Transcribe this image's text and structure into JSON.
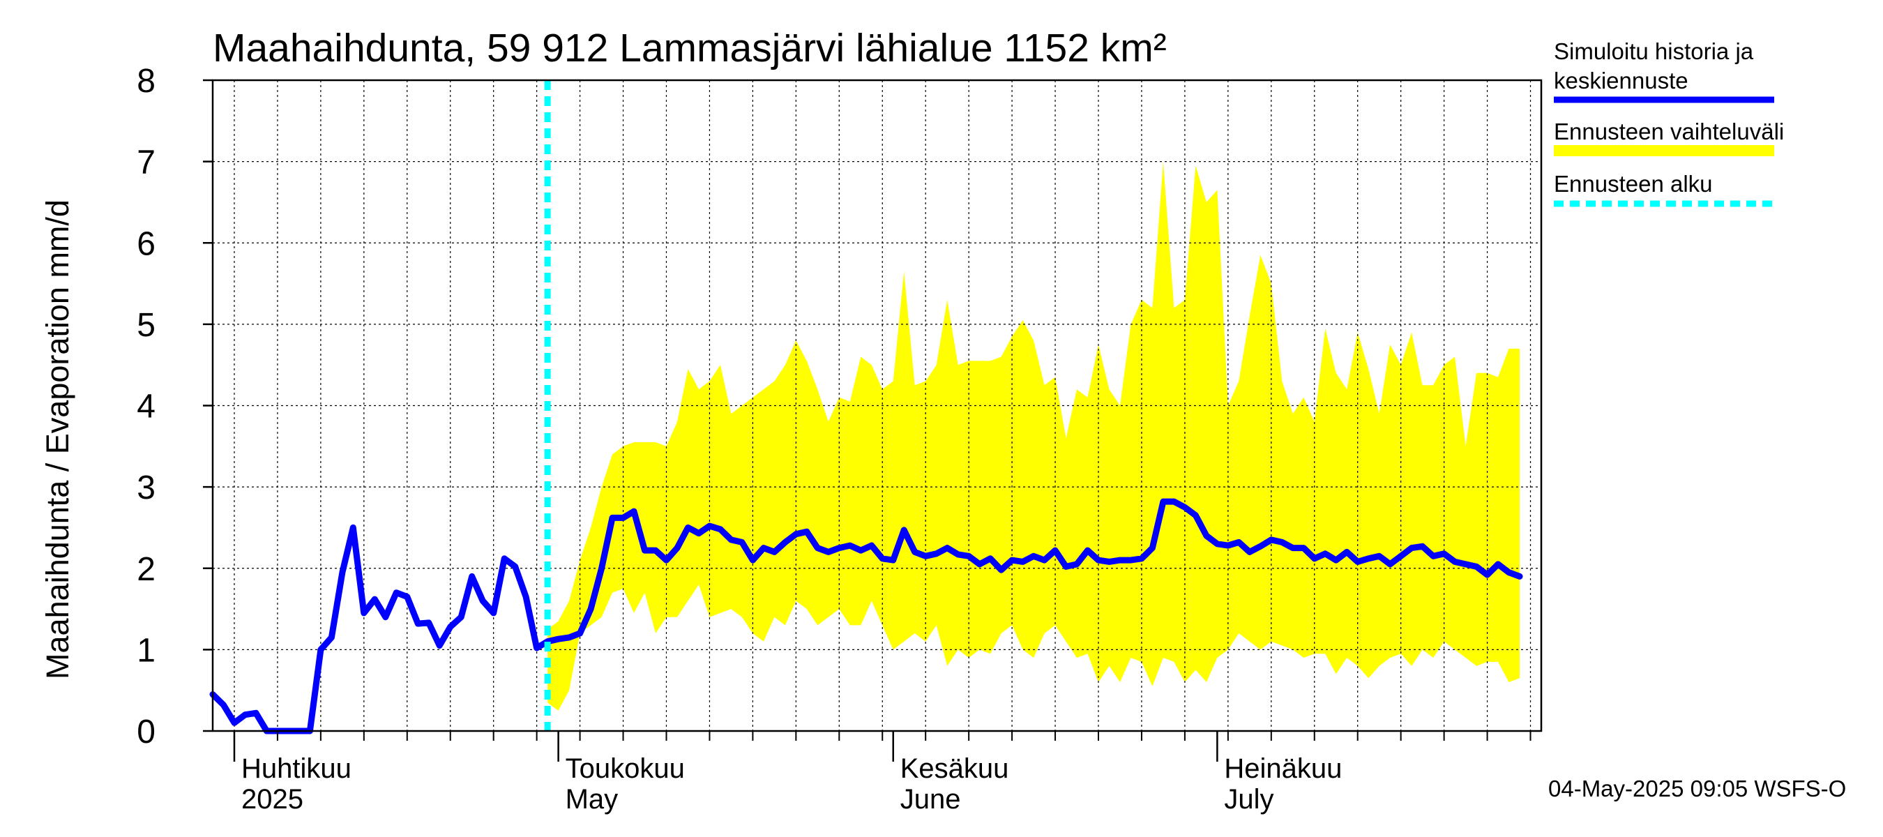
{
  "chart_data": {
    "type": "area",
    "title": "Maahaihdunta, 59 912 Lammasjärvi lähialue 1152 km²",
    "ylabel": "Maahaihdunta / Evaporation   mm/d",
    "ylim": [
      0,
      8
    ],
    "yticks": [
      "0",
      "1",
      "2",
      "3",
      "4",
      "5",
      "6",
      "7",
      "8"
    ],
    "xlim": [
      "2025-03-30",
      "2025-07-31"
    ],
    "grid": true,
    "legend_position": "right",
    "forecast_start": "2025-04-30",
    "month_labels": [
      {
        "date": "2025-04-01",
        "fi": "Huhtikuu",
        "en": "2025"
      },
      {
        "date": "2025-05-01",
        "fi": "Toukokuu",
        "en": "May"
      },
      {
        "date": "2025-06-01",
        "fi": "Kesäkuu",
        "en": "June"
      },
      {
        "date": "2025-07-01",
        "fi": "Heinäkuu",
        "en": "July"
      }
    ],
    "legend": {
      "history": [
        "Simuloitu historia ja",
        "keskiennuste"
      ],
      "range": "Ennusteen vaihteluväli",
      "start": "Ennusteen alku"
    },
    "colors": {
      "history": "#0000ff",
      "range": "#ffff00",
      "start": "#00ffff"
    },
    "series": [
      {
        "name": "Simuloitu historia ja keskiennuste",
        "points": [
          [
            "2025-03-30",
            0.45
          ],
          [
            "2025-03-31",
            0.32
          ],
          [
            "2025-04-01",
            0.1
          ],
          [
            "2025-04-02",
            0.2
          ],
          [
            "2025-04-03",
            0.22
          ],
          [
            "2025-04-04",
            0.0
          ],
          [
            "2025-04-05",
            0.0
          ],
          [
            "2025-04-06",
            0.0
          ],
          [
            "2025-04-07",
            0.0
          ],
          [
            "2025-04-08",
            0.0
          ],
          [
            "2025-04-09",
            1.0
          ],
          [
            "2025-04-10",
            1.15
          ],
          [
            "2025-04-11",
            1.95
          ],
          [
            "2025-04-12",
            2.5
          ],
          [
            "2025-04-13",
            1.45
          ],
          [
            "2025-04-14",
            1.62
          ],
          [
            "2025-04-15",
            1.4
          ],
          [
            "2025-04-16",
            1.7
          ],
          [
            "2025-04-17",
            1.65
          ],
          [
            "2025-04-18",
            1.32
          ],
          [
            "2025-04-19",
            1.33
          ],
          [
            "2025-04-20",
            1.05
          ],
          [
            "2025-04-21",
            1.28
          ],
          [
            "2025-04-22",
            1.4
          ],
          [
            "2025-04-23",
            1.9
          ],
          [
            "2025-04-24",
            1.6
          ],
          [
            "2025-04-25",
            1.45
          ],
          [
            "2025-04-26",
            2.12
          ],
          [
            "2025-04-27",
            2.02
          ],
          [
            "2025-04-28",
            1.65
          ],
          [
            "2025-04-29",
            1.02
          ],
          [
            "2025-04-30",
            1.1
          ],
          [
            "2025-05-01",
            1.13
          ],
          [
            "2025-05-02",
            1.15
          ],
          [
            "2025-05-03",
            1.2
          ],
          [
            "2025-05-04",
            1.5
          ],
          [
            "2025-05-05",
            2.0
          ],
          [
            "2025-05-06",
            2.62
          ],
          [
            "2025-05-07",
            2.62
          ],
          [
            "2025-05-08",
            2.7
          ],
          [
            "2025-05-09",
            2.22
          ],
          [
            "2025-05-10",
            2.22
          ],
          [
            "2025-05-11",
            2.1
          ],
          [
            "2025-05-12",
            2.25
          ],
          [
            "2025-05-13",
            2.5
          ],
          [
            "2025-05-14",
            2.43
          ],
          [
            "2025-05-15",
            2.52
          ],
          [
            "2025-05-16",
            2.48
          ],
          [
            "2025-05-17",
            2.35
          ],
          [
            "2025-05-18",
            2.32
          ],
          [
            "2025-05-19",
            2.1
          ],
          [
            "2025-05-20",
            2.25
          ],
          [
            "2025-05-21",
            2.2
          ],
          [
            "2025-05-22",
            2.32
          ],
          [
            "2025-05-23",
            2.42
          ],
          [
            "2025-05-24",
            2.45
          ],
          [
            "2025-05-25",
            2.25
          ],
          [
            "2025-05-26",
            2.2
          ],
          [
            "2025-05-27",
            2.25
          ],
          [
            "2025-05-28",
            2.28
          ],
          [
            "2025-05-29",
            2.22
          ],
          [
            "2025-05-30",
            2.28
          ],
          [
            "2025-05-31",
            2.12
          ],
          [
            "2025-06-01",
            2.1
          ],
          [
            "2025-06-02",
            2.47
          ],
          [
            "2025-06-03",
            2.2
          ],
          [
            "2025-06-04",
            2.15
          ],
          [
            "2025-06-05",
            2.18
          ],
          [
            "2025-06-06",
            2.25
          ],
          [
            "2025-06-07",
            2.17
          ],
          [
            "2025-06-08",
            2.15
          ],
          [
            "2025-06-09",
            2.05
          ],
          [
            "2025-06-10",
            2.12
          ],
          [
            "2025-06-11",
            1.98
          ],
          [
            "2025-06-12",
            2.1
          ],
          [
            "2025-06-13",
            2.08
          ],
          [
            "2025-06-14",
            2.15
          ],
          [
            "2025-06-15",
            2.1
          ],
          [
            "2025-06-16",
            2.22
          ],
          [
            "2025-06-17",
            2.02
          ],
          [
            "2025-06-18",
            2.05
          ],
          [
            "2025-06-19",
            2.22
          ],
          [
            "2025-06-20",
            2.1
          ],
          [
            "2025-06-21",
            2.08
          ],
          [
            "2025-06-22",
            2.1
          ],
          [
            "2025-06-23",
            2.1
          ],
          [
            "2025-06-24",
            2.12
          ],
          [
            "2025-06-25",
            2.25
          ],
          [
            "2025-06-26",
            2.82
          ],
          [
            "2025-06-27",
            2.82
          ],
          [
            "2025-06-28",
            2.75
          ],
          [
            "2025-06-29",
            2.65
          ],
          [
            "2025-06-30",
            2.4
          ],
          [
            "2025-07-01",
            2.3
          ],
          [
            "2025-07-02",
            2.28
          ],
          [
            "2025-07-03",
            2.32
          ],
          [
            "2025-07-04",
            2.2
          ],
          [
            "2025-07-05",
            2.27
          ],
          [
            "2025-07-06",
            2.35
          ],
          [
            "2025-07-07",
            2.32
          ],
          [
            "2025-07-08",
            2.25
          ],
          [
            "2025-07-09",
            2.25
          ],
          [
            "2025-07-10",
            2.12
          ],
          [
            "2025-07-11",
            2.18
          ],
          [
            "2025-07-12",
            2.1
          ],
          [
            "2025-07-13",
            2.2
          ],
          [
            "2025-07-14",
            2.08
          ],
          [
            "2025-07-15",
            2.12
          ],
          [
            "2025-07-16",
            2.15
          ],
          [
            "2025-07-17",
            2.05
          ],
          [
            "2025-07-18",
            2.15
          ],
          [
            "2025-07-19",
            2.25
          ],
          [
            "2025-07-20",
            2.27
          ],
          [
            "2025-07-21",
            2.15
          ],
          [
            "2025-07-22",
            2.18
          ],
          [
            "2025-07-23",
            2.08
          ],
          [
            "2025-07-24",
            2.05
          ],
          [
            "2025-07-25",
            2.02
          ],
          [
            "2025-07-26",
            1.92
          ],
          [
            "2025-07-27",
            2.05
          ],
          [
            "2025-07-28",
            1.95
          ],
          [
            "2025-07-29",
            1.9
          ]
        ]
      },
      {
        "name": "Ennusteen vaihteluväli",
        "band": [
          [
            "2025-04-30",
            1.25,
            0.35
          ],
          [
            "2025-05-01",
            1.35,
            0.25
          ],
          [
            "2025-05-02",
            1.6,
            0.5
          ],
          [
            "2025-05-03",
            2.1,
            1.2
          ],
          [
            "2025-05-04",
            2.5,
            1.3
          ],
          [
            "2025-05-05",
            3.0,
            1.4
          ],
          [
            "2025-05-06",
            3.4,
            1.7
          ],
          [
            "2025-05-07",
            3.5,
            1.75
          ],
          [
            "2025-05-08",
            3.55,
            1.45
          ],
          [
            "2025-05-09",
            3.55,
            1.7
          ],
          [
            "2025-05-10",
            3.55,
            1.2
          ],
          [
            "2025-05-11",
            3.5,
            1.4
          ],
          [
            "2025-05-12",
            3.8,
            1.4
          ],
          [
            "2025-05-13",
            4.45,
            1.6
          ],
          [
            "2025-05-14",
            4.2,
            1.8
          ],
          [
            "2025-05-15",
            4.3,
            1.4
          ],
          [
            "2025-05-16",
            4.5,
            1.45
          ],
          [
            "2025-05-17",
            3.9,
            1.5
          ],
          [
            "2025-05-18",
            4.0,
            1.4
          ],
          [
            "2025-05-19",
            4.1,
            1.2
          ],
          [
            "2025-05-20",
            4.2,
            1.1
          ],
          [
            "2025-05-21",
            4.3,
            1.4
          ],
          [
            "2025-05-22",
            4.5,
            1.3
          ],
          [
            "2025-05-23",
            4.8,
            1.6
          ],
          [
            "2025-05-24",
            4.55,
            1.5
          ],
          [
            "2025-05-25",
            4.2,
            1.3
          ],
          [
            "2025-05-26",
            3.8,
            1.4
          ],
          [
            "2025-05-27",
            4.1,
            1.5
          ],
          [
            "2025-05-28",
            4.05,
            1.3
          ],
          [
            "2025-05-29",
            4.6,
            1.3
          ],
          [
            "2025-05-30",
            4.5,
            1.6
          ],
          [
            "2025-05-31",
            4.2,
            1.3
          ],
          [
            "2025-06-01",
            4.3,
            1.0
          ],
          [
            "2025-06-02",
            5.65,
            1.1
          ],
          [
            "2025-06-03",
            4.25,
            1.2
          ],
          [
            "2025-06-04",
            4.3,
            1.1
          ],
          [
            "2025-06-05",
            4.5,
            1.3
          ],
          [
            "2025-06-06",
            5.3,
            0.8
          ],
          [
            "2025-06-07",
            4.5,
            1.0
          ],
          [
            "2025-06-08",
            4.55,
            0.9
          ],
          [
            "2025-06-09",
            4.55,
            1.0
          ],
          [
            "2025-06-10",
            4.55,
            0.95
          ],
          [
            "2025-06-11",
            4.6,
            1.2
          ],
          [
            "2025-06-12",
            4.85,
            1.3
          ],
          [
            "2025-06-13",
            5.05,
            1.0
          ],
          [
            "2025-06-14",
            4.8,
            0.9
          ],
          [
            "2025-06-15",
            4.25,
            1.2
          ],
          [
            "2025-06-16",
            4.35,
            1.3
          ],
          [
            "2025-06-17",
            3.6,
            1.1
          ],
          [
            "2025-06-18",
            4.2,
            0.9
          ],
          [
            "2025-06-19",
            4.1,
            0.95
          ],
          [
            "2025-06-20",
            4.75,
            0.6
          ],
          [
            "2025-06-21",
            4.2,
            0.8
          ],
          [
            "2025-06-22",
            4.0,
            0.6
          ],
          [
            "2025-06-23",
            5.0,
            0.9
          ],
          [
            "2025-06-24",
            5.3,
            0.85
          ],
          [
            "2025-06-25",
            5.2,
            0.55
          ],
          [
            "2025-06-26",
            7.0,
            0.9
          ],
          [
            "2025-06-27",
            5.2,
            0.85
          ],
          [
            "2025-06-28",
            5.3,
            0.6
          ],
          [
            "2025-06-29",
            6.95,
            0.75
          ],
          [
            "2025-06-30",
            6.5,
            0.6
          ],
          [
            "2025-07-01",
            6.65,
            0.9
          ],
          [
            "2025-07-02",
            4.0,
            1.0
          ],
          [
            "2025-07-03",
            4.3,
            1.2
          ],
          [
            "2025-07-04",
            5.1,
            1.1
          ],
          [
            "2025-07-05",
            5.85,
            1.0
          ],
          [
            "2025-07-06",
            5.5,
            1.1
          ],
          [
            "2025-07-07",
            4.3,
            1.05
          ],
          [
            "2025-07-08",
            3.9,
            1.0
          ],
          [
            "2025-07-09",
            4.1,
            0.9
          ],
          [
            "2025-07-10",
            3.8,
            0.95
          ],
          [
            "2025-07-11",
            4.95,
            0.95
          ],
          [
            "2025-07-12",
            4.4,
            0.7
          ],
          [
            "2025-07-13",
            4.2,
            0.9
          ],
          [
            "2025-07-14",
            4.9,
            0.8
          ],
          [
            "2025-07-15",
            4.45,
            0.65
          ],
          [
            "2025-07-16",
            3.9,
            0.8
          ],
          [
            "2025-07-17",
            4.75,
            0.9
          ],
          [
            "2025-07-18",
            4.5,
            0.95
          ],
          [
            "2025-07-19",
            4.9,
            0.8
          ],
          [
            "2025-07-20",
            4.25,
            1.0
          ],
          [
            "2025-07-21",
            4.25,
            0.9
          ],
          [
            "2025-07-22",
            4.5,
            1.1
          ],
          [
            "2025-07-23",
            4.6,
            1.0
          ],
          [
            "2025-07-24",
            3.5,
            0.9
          ],
          [
            "2025-07-25",
            4.4,
            0.8
          ],
          [
            "2025-07-26",
            4.4,
            0.85
          ],
          [
            "2025-07-27",
            4.35,
            0.85
          ],
          [
            "2025-07-28",
            4.7,
            0.6
          ],
          [
            "2025-07-29",
            4.7,
            0.65
          ]
        ]
      }
    ]
  },
  "footer": {
    "timestamp": "04-May-2025 09:05 WSFS-O"
  }
}
